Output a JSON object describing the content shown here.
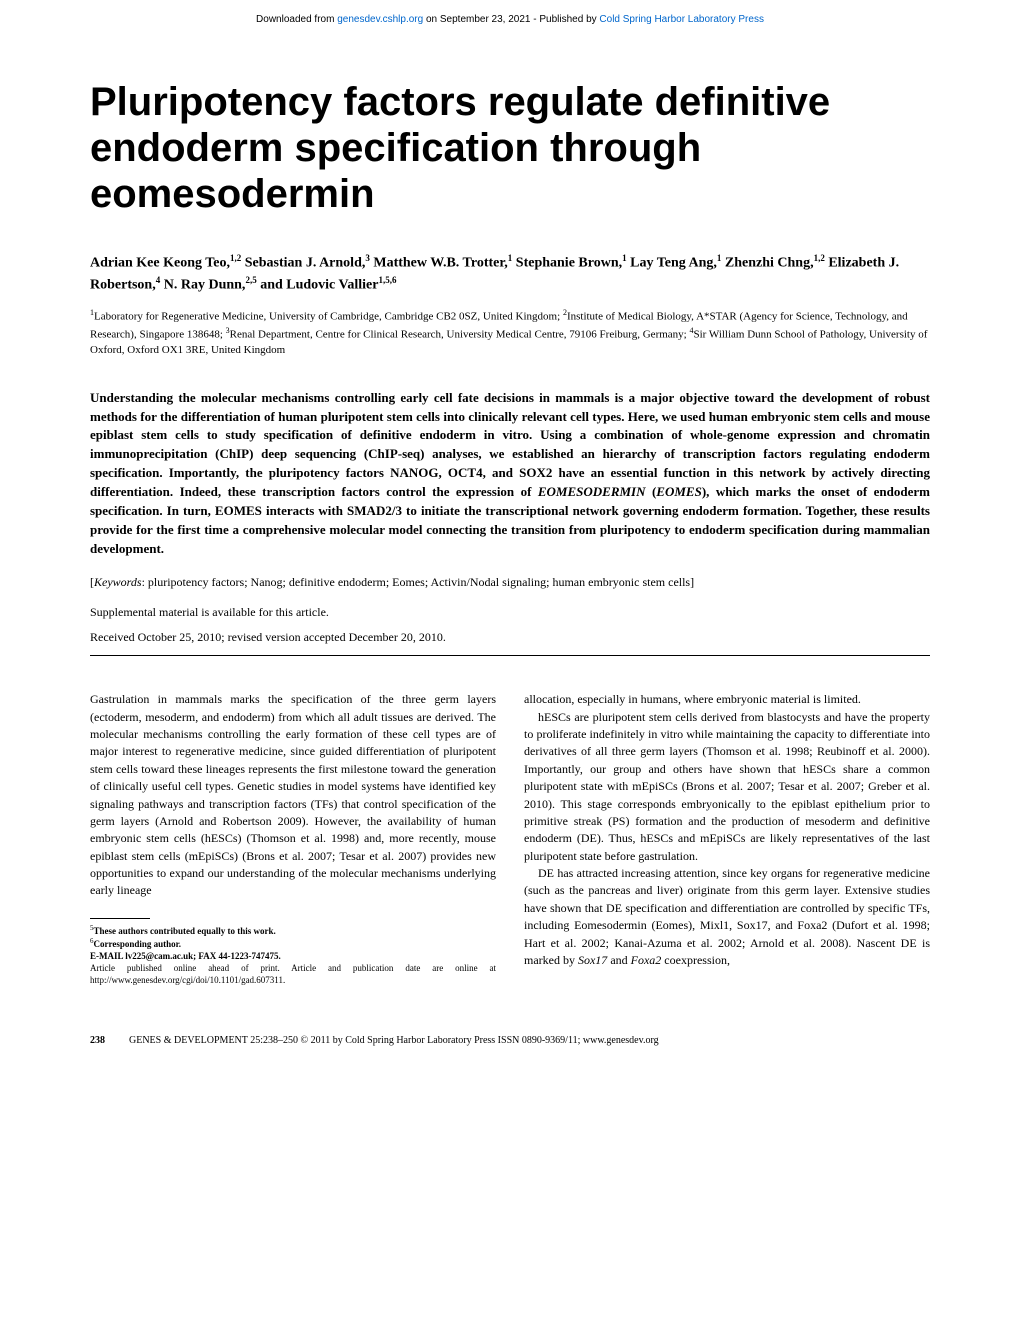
{
  "header": {
    "prefix": "Downloaded from ",
    "link1_text": "genesdev.cshlp.org",
    "middle": " on September 23, 2021 - Published by ",
    "link2_text": "Cold Spring Harbor Laboratory Press"
  },
  "title": "Pluripotency factors regulate definitive endoderm specification through eomesodermin",
  "authors_html": "Adrian Kee Keong Teo,<sup>1,2</sup> Sebastian J. Arnold,<sup>3</sup> Matthew W.B. Trotter,<sup>1</sup> Stephanie Brown,<sup>1</sup> Lay Teng Ang,<sup>1</sup> Zhenzhi Chng,<sup>1,2</sup> Elizabeth J. Robertson,<sup>4</sup> N. Ray Dunn,<sup>2,5</sup> and Ludovic Vallier<sup>1,5,6</sup>",
  "affiliations_html": "<sup>1</sup>Laboratory for Regenerative Medicine, University of Cambridge, Cambridge CB2 0SZ, United Kingdom; <sup>2</sup>Institute of Medical Biology, A*STAR (Agency for Science, Technology, and Research), Singapore 138648; <sup>3</sup>Renal Department, Centre for Clinical Research, University Medical Centre, 79106 Freiburg, Germany; <sup>4</sup>Sir William Dunn School of Pathology, University of Oxford, Oxford OX1 3RE, United Kingdom",
  "abstract_html": "Understanding the molecular mechanisms controlling early cell fate decisions in mammals is a major objective toward the development of robust methods for the differentiation of human pluripotent stem cells into clinically relevant cell types. Here, we used human embryonic stem cells and mouse epiblast stem cells to study specification of definitive endoderm in vitro. Using a combination of whole-genome expression and chromatin immunoprecipitation (ChIP) deep sequencing (ChIP-seq) analyses, we established an hierarchy of transcription factors regulating endoderm specification. Importantly, the pluripotency factors NANOG, OCT4, and SOX2 have an essential function in this network by actively directing differentiation. Indeed, these transcription factors control the expression of <em>EOMESODERMIN</em> (<em>EOMES</em>), which marks the onset of endoderm specification. In turn, EOMES interacts with SMAD2/3 to initiate the transcriptional network governing endoderm formation. Together, these results provide for the first time a comprehensive molecular model connecting the transition from pluripotency to endoderm specification during mammalian development.",
  "keywords_html": "[<em>Keywords</em>: pluripotency factors; Nanog; definitive endoderm; Eomes; Activin/Nodal signaling; human embryonic stem cells]",
  "supplemental": "Supplemental material is available for this article.",
  "received": "Received October 25, 2010; revised version accepted December 20, 2010.",
  "body": {
    "col1_p1": "Gastrulation in mammals marks the specification of the three germ layers (ectoderm, mesoderm, and endoderm) from which all adult tissues are derived. The molecular mechanisms controlling the early formation of these cell types are of major interest to regenerative medicine, since guided differentiation of pluripotent stem cells toward these lineages represents the first milestone toward the generation of clinically useful cell types. Genetic studies in model systems have identified key signaling pathways and transcription factors (TFs) that control specification of the germ layers (Arnold and Robertson 2009). However, the availability of human embryonic stem cells (hESCs) (Thomson et al. 1998) and, more recently, mouse epiblast stem cells (mEpiSCs) (Brons et al. 2007; Tesar et al. 2007) provides new opportunities to expand our understanding of the molecular mechanisms underlying early lineage",
    "col2_p1": "allocation, especially in humans, where embryonic material is limited.",
    "col2_p2": "hESCs are pluripotent stem cells derived from blastocysts and have the property to proliferate indefinitely in vitro while maintaining the capacity to differentiate into derivatives of all three germ layers (Thomson et al. 1998; Reubinoff et al. 2000). Importantly, our group and others have shown that hESCs share a common pluripotent state with mEpiSCs (Brons et al. 2007; Tesar et al. 2007; Greber et al. 2010). This stage corresponds embryonically to the epiblast epithelium prior to primitive streak (PS) formation and the production of mesoderm and definitive endoderm (DE). Thus, hESCs and mEpiSCs are likely representatives of the last pluripotent state before gastrulation.",
    "col2_p3_html": "DE has attracted increasing attention, since key organs for regenerative medicine (such as the pancreas and liver) originate from this germ layer. Extensive studies have shown that DE specification and differentiation are controlled by specific TFs, including Eomesodermin (Eomes), Mixl1, Sox17, and Foxa2 (Dufort et al. 1998; Hart et al. 2002; Kanai-Azuma et al. 2002; Arnold et al. 2008). Nascent DE is marked by <em>Sox17</em> and <em>Foxa2</em> coexpression,"
  },
  "footnotes_html": "<sup>5</sup><strong>These authors contributed equally to this work.</strong><br><sup>6</sup><strong>Corresponding author.</strong><br><strong>E-MAIL lv225@cam.ac.uk; FAX 44-1223-747475.</strong><br>Article published online ahead of print. Article and publication date are online at http://www.genesdev.org/cgi/doi/10.1101/gad.607311.",
  "footer": {
    "page_number": "238",
    "text": "GENES & DEVELOPMENT 25:238–250 © 2011 by Cold Spring Harbor Laboratory Press ISSN 0890-9369/11; www.genesdev.org"
  }
}
